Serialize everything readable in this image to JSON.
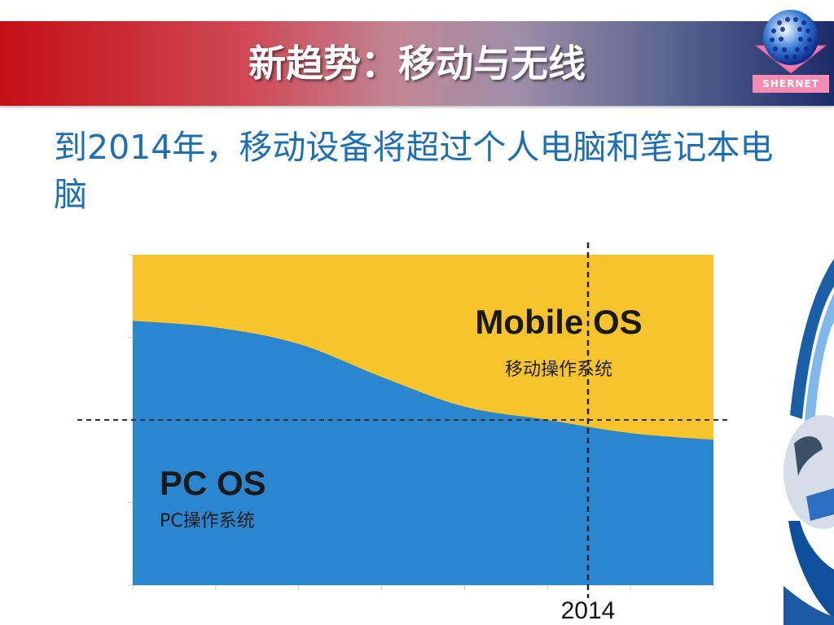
{
  "slide": {
    "title": "新趋势：移动与无线",
    "logo_text": "SHERNET",
    "subtitle": "到2014年，移动设备将超过个人电脑和笔记本电脑",
    "brand_colors": {
      "title_red": "#c40f16",
      "title_navy": "#1c2c6a",
      "subtitle_blue": "#1c6fb5"
    }
  },
  "chart_data": {
    "type": "area",
    "title": "",
    "stacked": true,
    "x_tick_labels": [
      "2014"
    ],
    "x_marker": "2014",
    "series": [
      {
        "name": "PC OS",
        "sublabel": "PC操作系统",
        "color": "#2a87cf",
        "values": [
          80,
          78,
          73,
          63,
          54,
          50,
          46,
          44
        ]
      },
      {
        "name": "Mobile OS",
        "sublabel": "移动操作系统",
        "color": "#f7c42c",
        "values": [
          20,
          22,
          27,
          37,
          46,
          50,
          54,
          56
        ]
      }
    ],
    "ylim": [
      0,
      100
    ],
    "reference_line": 50,
    "grid": false
  }
}
